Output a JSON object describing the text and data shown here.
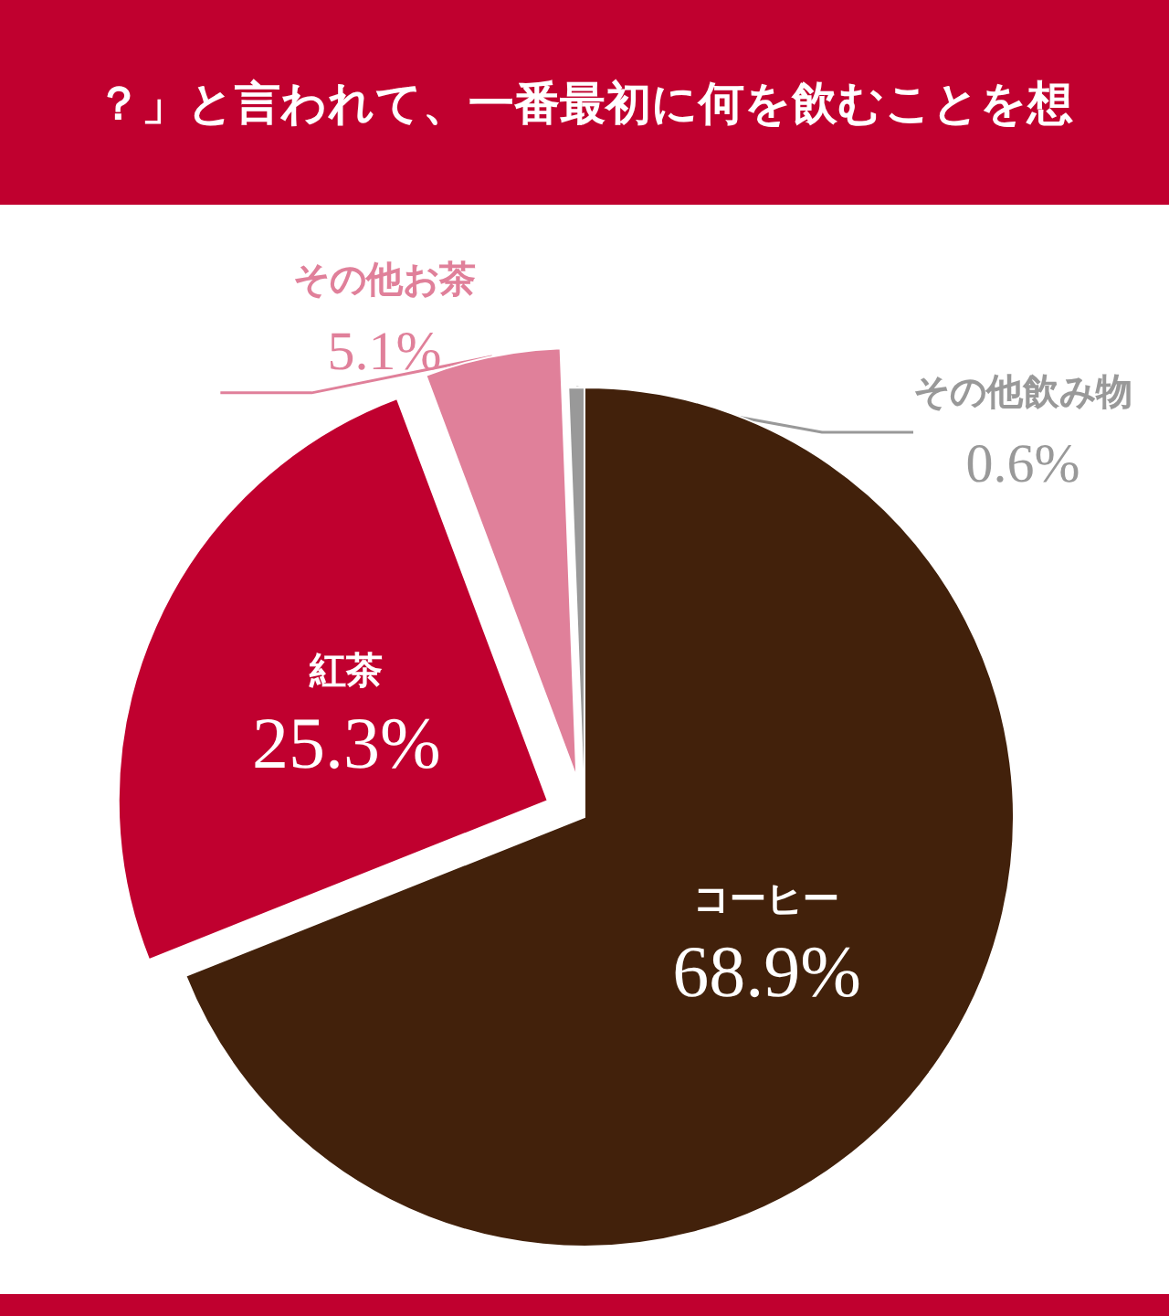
{
  "chart_data": {
    "type": "pie",
    "title": "？」と言われて、一番最初に何を飲むことを想",
    "categories": [
      "コーヒー",
      "紅茶",
      "その他お茶",
      "その他飲み物"
    ],
    "values": [
      68.9,
      25.3,
      5.1,
      0.6
    ],
    "value_labels": [
      "68.9%",
      "25.3%",
      "5.1%",
      "0.6%"
    ],
    "colors": [
      "#42210b",
      "#c0002f",
      "#e0809a",
      "#999999"
    ],
    "legend": false
  }
}
